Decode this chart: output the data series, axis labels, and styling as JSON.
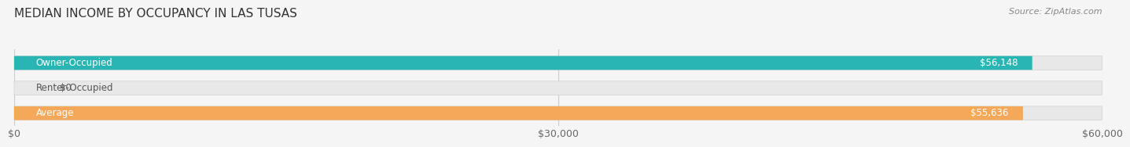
{
  "title": "MEDIAN INCOME BY OCCUPANCY IN LAS TUSAS",
  "source": "Source: ZipAtlas.com",
  "categories": [
    "Owner-Occupied",
    "Renter-Occupied",
    "Average"
  ],
  "values": [
    56148,
    0,
    55636
  ],
  "bar_colors": [
    "#2ab5b5",
    "#b89ec4",
    "#f5a85a"
  ],
  "bar_labels": [
    "$56,148",
    "$0",
    "$55,636"
  ],
  "xlim": [
    0,
    60000
  ],
  "xticks": [
    0,
    30000,
    60000
  ],
  "xticklabels": [
    "$0",
    "$30,000",
    "$60,000"
  ],
  "bg_color": "#f5f5f5",
  "bar_bg_color": "#e8e8e8",
  "bar_outline_color": "#d0d0d0",
  "title_fontsize": 11,
  "source_fontsize": 8,
  "label_fontsize": 8.5,
  "tick_fontsize": 9
}
